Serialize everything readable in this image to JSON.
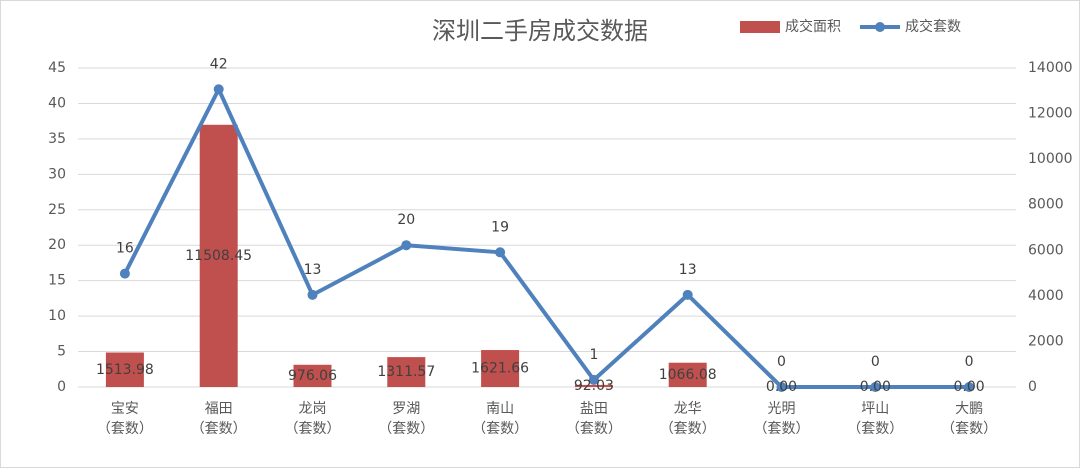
{
  "chart_data": {
    "type": "bar-line",
    "title": "深圳二手房成交数据",
    "categories": [
      "宝安（套数）",
      "福田（套数）",
      "龙岗（套数）",
      "罗湖（套数）",
      "南山（套数）",
      "盐田（套数）",
      "龙华（套数）",
      "光明（套数）",
      "坪山（套数）",
      "大鹏（套数）"
    ],
    "series": [
      {
        "name": "成交面积",
        "type": "bar",
        "axis": "y2",
        "color": "#c0504d",
        "values": [
          1513.98,
          11508.45,
          976.06,
          1311.57,
          1621.66,
          92.03,
          1066.08,
          0,
          0,
          0
        ],
        "value_labels": [
          "1513.98",
          "11508.45",
          "976.06",
          "1311.57",
          "1621.66",
          "92.03",
          "1066.08",
          "0.00",
          "0.00",
          "0.00"
        ]
      },
      {
        "name": "成交套数",
        "type": "line",
        "axis": "y",
        "color": "#4f81bd",
        "values": [
          16,
          42,
          13,
          20,
          19,
          1,
          13,
          0,
          0,
          0
        ]
      }
    ],
    "ylim": [
      0,
      45
    ],
    "yticks": [
      0,
      5,
      10,
      15,
      20,
      25,
      30,
      35,
      40,
      45
    ],
    "y2lim": [
      0,
      14000
    ],
    "y2ticks": [
      0,
      2000,
      4000,
      6000,
      8000,
      10000,
      12000,
      14000
    ],
    "grid": true,
    "legend": "top-right"
  }
}
